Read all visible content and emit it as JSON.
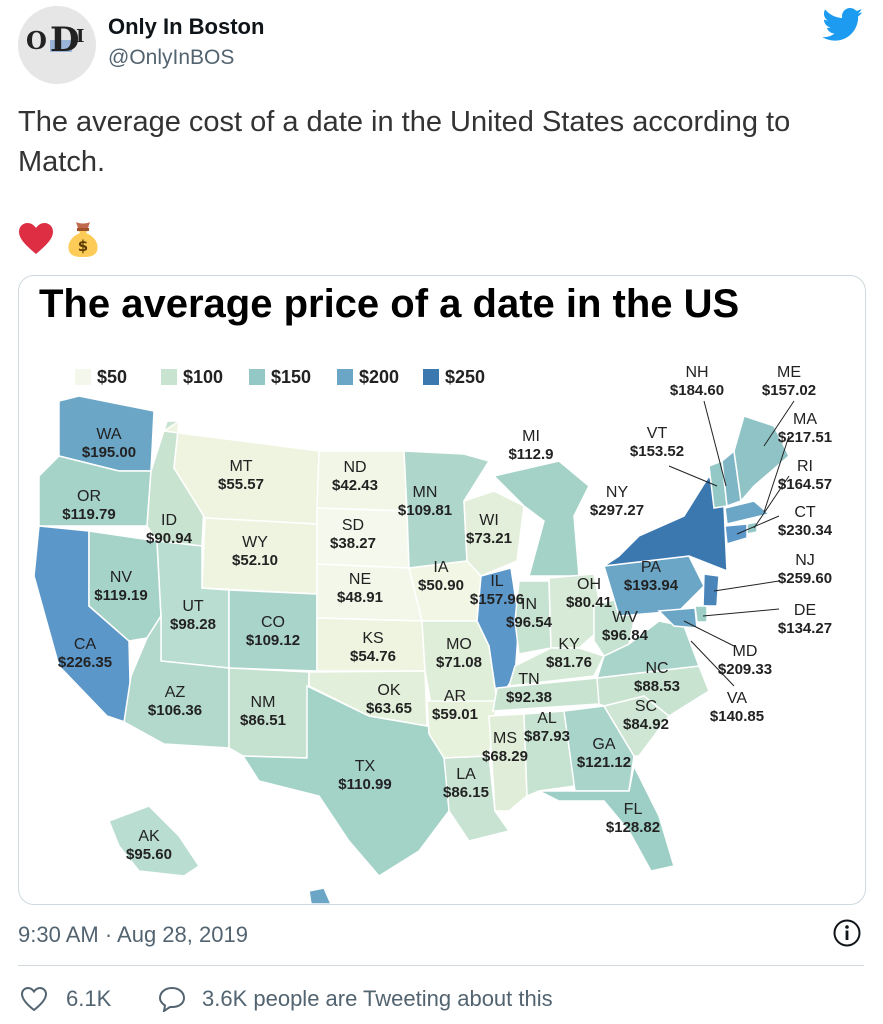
{
  "tweet": {
    "display_name": "Only In Boston",
    "handle": "@OnlyInBOS",
    "text": "The average cost of a date in the United States according to Match.",
    "emojis": [
      "heart-icon",
      "money-bag-icon"
    ],
    "avatar_text": {
      "o": "O",
      "d": "D",
      "i": "I"
    },
    "timestamp": "9:30 AM · Aug 28, 2019",
    "like_count": "6.1K",
    "reply_text": "3.6K people are Tweeting about this"
  },
  "map": {
    "title": "The average price of a date in the US",
    "legend": [
      {
        "label": "$50",
        "color": "#f4f7ec"
      },
      {
        "label": "$100",
        "color": "#c9e3d1"
      },
      {
        "label": "$150",
        "color": "#94c8c6"
      },
      {
        "label": "$200",
        "color": "#6ba6c7"
      },
      {
        "label": "$250",
        "color": "#3b78b0"
      }
    ],
    "states": [
      {
        "abbr": "WA",
        "price": "$195.00"
      },
      {
        "abbr": "OR",
        "price": "$119.79"
      },
      {
        "abbr": "CA",
        "price": "$226.35"
      },
      {
        "abbr": "NV",
        "price": "$119.19"
      },
      {
        "abbr": "ID",
        "price": "$90.94"
      },
      {
        "abbr": "MT",
        "price": "$55.57"
      },
      {
        "abbr": "WY",
        "price": "$52.10"
      },
      {
        "abbr": "UT",
        "price": "$98.28"
      },
      {
        "abbr": "AZ",
        "price": "$106.36"
      },
      {
        "abbr": "CO",
        "price": "$109.12"
      },
      {
        "abbr": "NM",
        "price": "$86.51"
      },
      {
        "abbr": "ND",
        "price": "$42.43"
      },
      {
        "abbr": "SD",
        "price": "$38.27"
      },
      {
        "abbr": "NE",
        "price": "$48.91"
      },
      {
        "abbr": "KS",
        "price": "$54.76"
      },
      {
        "abbr": "OK",
        "price": "$63.65"
      },
      {
        "abbr": "TX",
        "price": "$110.99"
      },
      {
        "abbr": "MN",
        "price": "$109.81"
      },
      {
        "abbr": "IA",
        "price": "$50.90"
      },
      {
        "abbr": "MO",
        "price": "$71.08"
      },
      {
        "abbr": "AR",
        "price": "$59.01"
      },
      {
        "abbr": "LA",
        "price": "$86.15"
      },
      {
        "abbr": "WI",
        "price": "$73.21"
      },
      {
        "abbr": "IL",
        "price": "$157.96"
      },
      {
        "abbr": "MI",
        "price": "$112.9"
      },
      {
        "abbr": "IN",
        "price": "$96.54"
      },
      {
        "abbr": "OH",
        "price": "$80.41"
      },
      {
        "abbr": "KY",
        "price": "$81.76"
      },
      {
        "abbr": "TN",
        "price": "$92.38"
      },
      {
        "abbr": "MS",
        "price": "$68.29"
      },
      {
        "abbr": "AL",
        "price": "$87.93"
      },
      {
        "abbr": "GA",
        "price": "$121.12"
      },
      {
        "abbr": "FL",
        "price": "$128.82"
      },
      {
        "abbr": "SC",
        "price": "$84.92"
      },
      {
        "abbr": "NC",
        "price": "$88.53"
      },
      {
        "abbr": "VA",
        "price": "$140.85"
      },
      {
        "abbr": "WV",
        "price": "$96.84"
      },
      {
        "abbr": "PA",
        "price": "$193.94"
      },
      {
        "abbr": "NY",
        "price": "$297.27"
      },
      {
        "abbr": "VT",
        "price": "$153.52"
      },
      {
        "abbr": "NH",
        "price": "$184.60"
      },
      {
        "abbr": "ME",
        "price": "$157.02"
      },
      {
        "abbr": "MA",
        "price": "$217.51"
      },
      {
        "abbr": "RI",
        "price": "$164.57"
      },
      {
        "abbr": "CT",
        "price": "$230.34"
      },
      {
        "abbr": "NJ",
        "price": "$259.60"
      },
      {
        "abbr": "DE",
        "price": "$134.27"
      },
      {
        "abbr": "MD",
        "price": "$209.33"
      },
      {
        "abbr": "AK",
        "price": "$95.60"
      }
    ]
  },
  "colors": {
    "twitter_blue": "#1d9bf0",
    "heart_red": "#e0245e",
    "muted_text": "#536471"
  }
}
